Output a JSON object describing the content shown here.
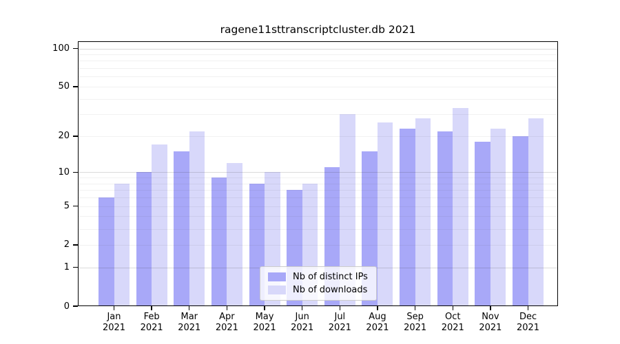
{
  "chart_data": {
    "type": "bar",
    "title": "ragene11sttranscriptcluster.db 2021",
    "xlabel": "",
    "ylabel": "",
    "categories": [
      "Jan 2021",
      "Feb 2021",
      "Mar 2021",
      "Apr 2021",
      "May 2021",
      "Jun 2021",
      "Jul 2021",
      "Aug 2021",
      "Sep 2021",
      "Oct 2021",
      "Nov 2021",
      "Dec 2021"
    ],
    "series": [
      {
        "name": "Nb of distinct IPs",
        "color": "#a8a8f8",
        "values": [
          6,
          10,
          15,
          9,
          8,
          7,
          11,
          15,
          23,
          22,
          18,
          20
        ]
      },
      {
        "name": "Nb of downloads",
        "color": "#d8d8fa",
        "values": [
          8,
          17,
          22,
          12,
          10,
          8,
          30,
          26,
          28,
          34,
          23,
          28
        ]
      }
    ],
    "yscale": "log10(1+y)",
    "ylim": [
      0,
      114
    ],
    "yticks": [
      0,
      1,
      2,
      5,
      10,
      20,
      50,
      100
    ],
    "y_major_gridlines": [
      1,
      10,
      100
    ],
    "y_minor_gridlines": [
      2,
      3,
      4,
      5,
      6,
      7,
      8,
      9,
      20,
      30,
      40,
      50,
      60,
      70,
      80,
      90
    ],
    "grid": "on",
    "legend_position": "lower center inside plot",
    "colors": {
      "background": "#ffffff",
      "axis": "#000000",
      "grid_minor": "#ededed",
      "grid_major": "#d2d2d2",
      "legend_border": "#cbcbcb"
    }
  }
}
